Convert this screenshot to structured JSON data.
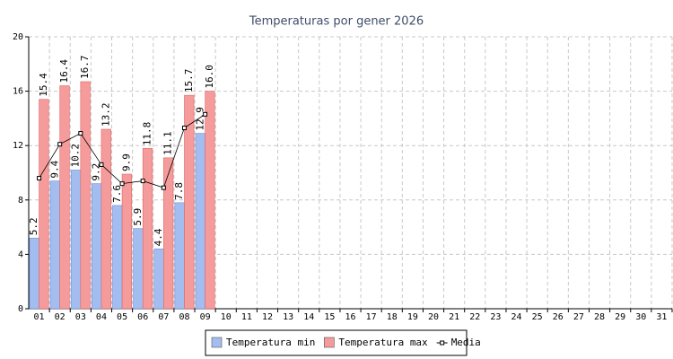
{
  "chart_data": {
    "type": "bar",
    "title": "Temperaturas por gener 2026",
    "categories": [
      "01",
      "02",
      "03",
      "04",
      "05",
      "06",
      "07",
      "08",
      "09",
      "10",
      "11",
      "12",
      "13",
      "14",
      "15",
      "16",
      "17",
      "18",
      "19",
      "20",
      "21",
      "22",
      "23",
      "24",
      "25",
      "26",
      "27",
      "28",
      "29",
      "30",
      "31"
    ],
    "series": [
      {
        "name": "Temperatura min",
        "color": "#a4bdf0",
        "values": [
          5.2,
          9.4,
          10.2,
          9.2,
          7.6,
          5.9,
          4.4,
          7.8,
          12.9,
          null,
          null,
          null,
          null,
          null,
          null,
          null,
          null,
          null,
          null,
          null,
          null,
          null,
          null,
          null,
          null,
          null,
          null,
          null,
          null,
          null,
          null
        ]
      },
      {
        "name": "Temperatura max",
        "color": "#f59b9b",
        "values": [
          15.4,
          16.4,
          16.7,
          13.2,
          9.9,
          11.8,
          11.1,
          15.7,
          16,
          null,
          null,
          null,
          null,
          null,
          null,
          null,
          null,
          null,
          null,
          null,
          null,
          null,
          null,
          null,
          null,
          null,
          null,
          null,
          null,
          null,
          null
        ],
        "value_labels": [
          "15.4",
          "16.4",
          "16.7",
          "13.2",
          "9.9",
          "11.8",
          "11.1",
          "15.7",
          "16.0",
          null,
          null,
          null,
          null,
          null,
          null,
          null,
          null,
          null,
          null,
          null,
          null,
          null,
          null,
          null,
          null,
          null,
          null,
          null,
          null,
          null,
          null
        ]
      },
      {
        "name": "Media",
        "type": "line",
        "color": "#000000",
        "values": [
          9.6,
          12.1,
          12.9,
          10.6,
          9.2,
          9.4,
          8.9,
          13.3,
          14.3,
          null,
          null,
          null,
          null,
          null,
          null,
          null,
          null,
          null,
          null,
          null,
          null,
          null,
          null,
          null,
          null,
          null,
          null,
          null,
          null,
          null,
          null
        ]
      }
    ],
    "ylim": [
      0,
      20
    ],
    "yticks": [
      0,
      4,
      8,
      12,
      16,
      20
    ],
    "grid": true,
    "legend": "bottom"
  }
}
